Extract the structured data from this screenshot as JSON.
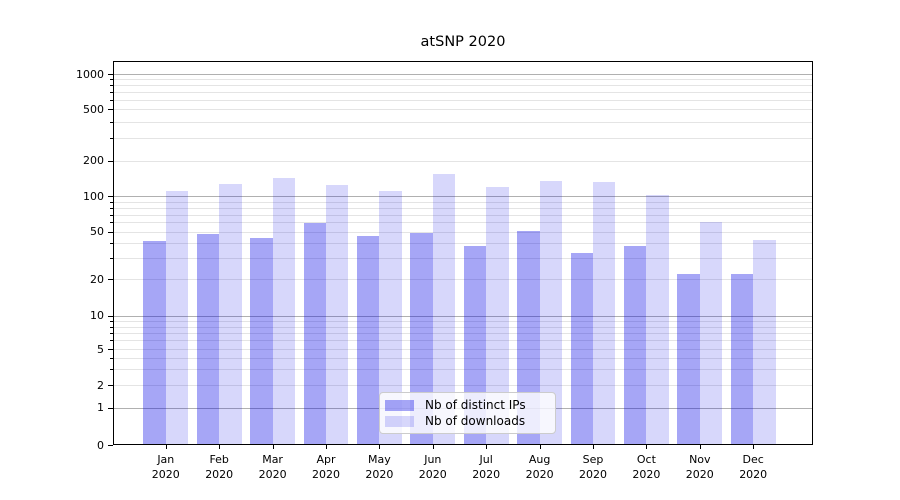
{
  "chart_data": {
    "type": "bar",
    "title": "atSNP 2020",
    "scale": "symlog",
    "grid": true,
    "legend_position": "lower center",
    "ylim": [
      0,
      1290
    ],
    "categories": [
      "Jan 2020",
      "Feb 2020",
      "Mar 2020",
      "Apr 2020",
      "May 2020",
      "Jun 2020",
      "Jul 2020",
      "Aug 2020",
      "Sep 2020",
      "Oct 2020",
      "Nov 2020",
      "Dec 2020"
    ],
    "y_ticks": [
      {
        "value": 0,
        "label": "0"
      },
      {
        "value": 1,
        "label": "1"
      },
      {
        "value": 2,
        "label": "2"
      },
      {
        "value": 5,
        "label": "5"
      },
      {
        "value": 10,
        "label": "10"
      },
      {
        "value": 20,
        "label": "20"
      },
      {
        "value": 50,
        "label": "50"
      },
      {
        "value": 100,
        "label": "100"
      },
      {
        "value": 200,
        "label": "200"
      },
      {
        "value": 500,
        "label": "500"
      },
      {
        "value": 1000,
        "label": "1000"
      }
    ],
    "series": [
      {
        "name": "Nb of distinct IPs",
        "color": "#0000e6",
        "alpha": 0.35,
        "values": [
          42,
          48,
          44,
          59,
          46,
          49,
          38,
          51,
          33,
          38,
          22,
          22
        ]
      },
      {
        "name": "Nb of downloads",
        "color": "#0000e6",
        "alpha": 0.155,
        "values": [
          111,
          128,
          143,
          125,
          110,
          155,
          119,
          136,
          131,
          102,
          60,
          43
        ]
      }
    ],
    "colors": {
      "major_grid": "#b0b0b0",
      "minor_grid": "#e4e4e4",
      "axis": "#000000",
      "bar_dark_blended": "#a6a6f6",
      "bar_light_blended": "#d9d9fb"
    }
  }
}
